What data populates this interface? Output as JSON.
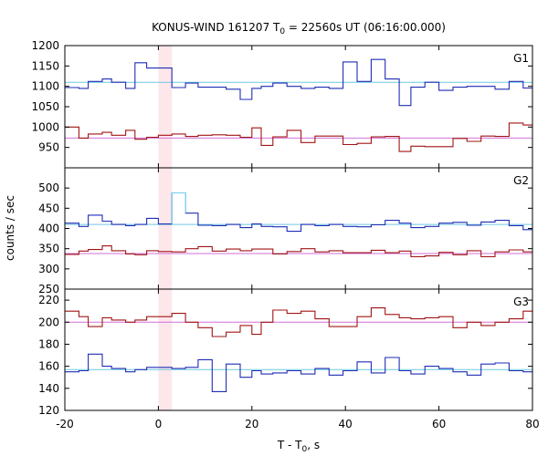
{
  "chart_data": {
    "type": "line",
    "title_main": "KONUS-WIND 161207 T",
    "title_sub": "0",
    "title_rest": " = 22560s UT (06:16:00.000)",
    "xlabel_main": "T - T",
    "xlabel_sub": "0",
    "xlabel_rest": ", s",
    "ylabel": "counts / sec",
    "xlim": [
      -20,
      80
    ],
    "x_ticks": [
      "-20",
      "0",
      "20",
      "40",
      "60",
      "80"
    ],
    "highlight_interval": [
      0,
      2.9
    ],
    "colors": {
      "high": "#1f2db5",
      "low": "#a01515",
      "fit_high": "#6fc9e3",
      "fit_low": "#d26fd8",
      "highlight": "#fde7ea",
      "g2_highlight_bin": "#7fd3f0"
    },
    "bin_edges": [
      -20,
      -17,
      -15,
      -12,
      -10,
      -7,
      -5,
      -2.5,
      0,
      2.9,
      5.8,
      8.5,
      11.5,
      14.5,
      17.5,
      20,
      22,
      24.5,
      27.5,
      30.5,
      33.5,
      36.5,
      39.5,
      42.5,
      45.5,
      48.5,
      51.5,
      54,
      57,
      60,
      63,
      66,
      69,
      72,
      75,
      78,
      80
    ],
    "panels": [
      {
        "label": "G1",
        "ylim": [
          900,
          1200
        ],
        "y_ticks": [
          900,
          950,
          1000,
          1050,
          1100,
          1150,
          1200
        ],
        "y_tick_labels": [
          "",
          "950",
          "1000",
          "1050",
          "1100",
          "1150",
          "1200"
        ],
        "fit_high": 1110,
        "fit_low": 973,
        "series_high": [
          1097,
          1095,
          1112,
          1118,
          1110,
          1095,
          1158,
          1145,
          1145,
          1097,
          1108,
          1098,
          1098,
          1093,
          1068,
          1095,
          1100,
          1108,
          1100,
          1095,
          1098,
          1095,
          1160,
          1112,
          1166,
          1118,
          1053,
          1098,
          1110,
          1090,
          1098,
          1100,
          1100,
          1093,
          1112,
          1096
        ],
        "series_low": [
          1000,
          973,
          983,
          987,
          980,
          992,
          970,
          975,
          980,
          983,
          977,
          980,
          981,
          980,
          975,
          998,
          955,
          976,
          992,
          962,
          978,
          978,
          957,
          960,
          976,
          977,
          940,
          953,
          952,
          952,
          972,
          965,
          978,
          977,
          1010,
          1005
        ]
      },
      {
        "label": "G2",
        "ylim": [
          250,
          550
        ],
        "y_ticks": [
          250,
          300,
          350,
          400,
          450,
          500
        ],
        "y_tick_labels": [
          "250",
          "300",
          "350",
          "400",
          "450",
          "500"
        ],
        "fit_high": 410,
        "fit_low": 338,
        "series_high": [
          413,
          405,
          433,
          418,
          410,
          407,
          410,
          425,
          411,
          488,
          438,
          408,
          407,
          410,
          402,
          411,
          405,
          404,
          393,
          410,
          407,
          410,
          405,
          404,
          409,
          420,
          413,
          402,
          405,
          413,
          415,
          408,
          416,
          420,
          407,
          397
        ],
        "series_low": [
          336,
          344,
          348,
          357,
          345,
          337,
          335,
          345,
          343,
          342,
          350,
          355,
          344,
          349,
          345,
          349,
          349,
          337,
          343,
          350,
          342,
          345,
          340,
          340,
          346,
          340,
          344,
          330,
          332,
          341,
          335,
          345,
          330,
          342,
          347,
          342
        ],
        "g2_highlight_value": 488
      },
      {
        "label": "G3",
        "ylim": [
          120,
          230
        ],
        "y_ticks": [
          120,
          140,
          160,
          180,
          200,
          220
        ],
        "y_tick_labels": [
          "120",
          "140",
          "160",
          "180",
          "200",
          "220"
        ],
        "fit_high": 157,
        "fit_low": 200,
        "series_high": [
          155,
          156,
          171,
          160,
          158,
          155,
          157,
          159,
          159,
          158,
          159,
          166,
          137,
          162,
          150,
          156,
          153,
          154,
          156,
          153,
          158,
          152,
          156,
          164,
          154,
          168,
          156,
          153,
          160,
          158,
          155,
          152,
          162,
          163,
          156,
          155
        ],
        "series_low": [
          210,
          205,
          196,
          204,
          202,
          200,
          202,
          205,
          205,
          208,
          200,
          195,
          187,
          191,
          197,
          189,
          200,
          211,
          208,
          210,
          203,
          196,
          196,
          205,
          213,
          207,
          204,
          203,
          204,
          205,
          195,
          200,
          197,
          200,
          203,
          210
        ]
      }
    ]
  }
}
